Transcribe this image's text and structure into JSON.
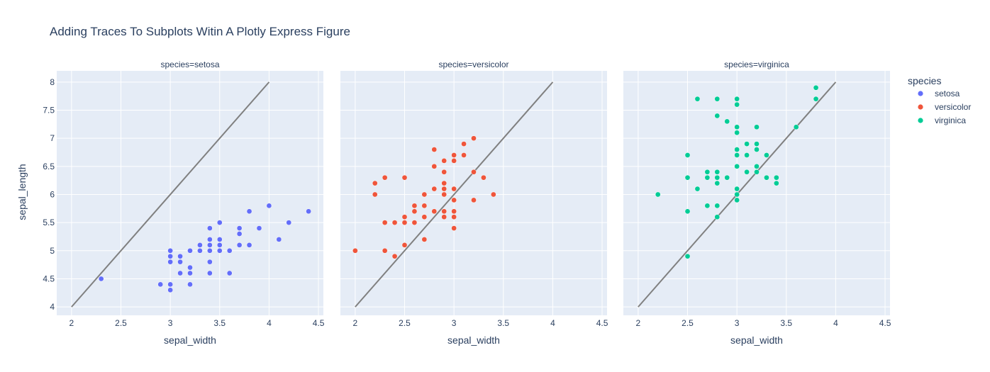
{
  "chart_data": {
    "type": "scatter",
    "title": "Adding Traces To Subplots Witin A Plotly Express Figure",
    "xlabel": "sepal_width",
    "ylabel": "sepal_length",
    "xlim": [
      1.85,
      4.55
    ],
    "ylim": [
      3.85,
      8.2
    ],
    "xticks": [
      2,
      2.5,
      3,
      3.5,
      4,
      4.5
    ],
    "xtick_labels": [
      "2",
      "2.5",
      "3",
      "3.5",
      "4",
      "4.5"
    ],
    "yticks": [
      4,
      4.5,
      5,
      5.5,
      6,
      6.5,
      7,
      7.5,
      8
    ],
    "ytick_labels": [
      "4",
      "4.5",
      "5",
      "5.5",
      "6",
      "6.5",
      "7",
      "7.5",
      "8"
    ],
    "grid": true,
    "legend_title": "species",
    "legend_position": "right",
    "reference_line": {
      "x": [
        2,
        4
      ],
      "y": [
        4,
        8
      ],
      "color": "#808080"
    },
    "facets": [
      {
        "title": "species=setosa",
        "name": "setosa",
        "color": "#636efa",
        "points": [
          [
            2.3,
            4.5
          ],
          [
            2.9,
            4.4
          ],
          [
            3.0,
            4.3
          ],
          [
            3.0,
            4.4
          ],
          [
            3.0,
            4.8
          ],
          [
            3.0,
            4.9
          ],
          [
            3.0,
            5.0
          ],
          [
            3.1,
            4.8
          ],
          [
            3.1,
            4.9
          ],
          [
            3.1,
            4.6
          ],
          [
            3.2,
            4.4
          ],
          [
            3.2,
            4.6
          ],
          [
            3.2,
            4.7
          ],
          [
            3.2,
            5.0
          ],
          [
            3.3,
            5.0
          ],
          [
            3.3,
            5.1
          ],
          [
            3.4,
            4.6
          ],
          [
            3.4,
            4.8
          ],
          [
            3.4,
            5.0
          ],
          [
            3.4,
            5.1
          ],
          [
            3.4,
            5.2
          ],
          [
            3.4,
            5.4
          ],
          [
            3.5,
            5.0
          ],
          [
            3.5,
            5.1
          ],
          [
            3.5,
            5.2
          ],
          [
            3.5,
            5.5
          ],
          [
            3.6,
            4.6
          ],
          [
            3.6,
            5.0
          ],
          [
            3.7,
            5.1
          ],
          [
            3.7,
            5.3
          ],
          [
            3.7,
            5.4
          ],
          [
            3.8,
            5.1
          ],
          [
            3.8,
            5.7
          ],
          [
            3.9,
            5.4
          ],
          [
            4.0,
            5.8
          ],
          [
            4.1,
            5.2
          ],
          [
            4.2,
            5.5
          ],
          [
            4.4,
            5.7
          ]
        ]
      },
      {
        "title": "species=versicolor",
        "name": "versicolor",
        "color": "#ef553b",
        "points": [
          [
            2.0,
            5.0
          ],
          [
            2.2,
            6.0
          ],
          [
            2.2,
            6.2
          ],
          [
            2.3,
            5.0
          ],
          [
            2.3,
            5.5
          ],
          [
            2.3,
            6.3
          ],
          [
            2.4,
            4.9
          ],
          [
            2.4,
            5.5
          ],
          [
            2.5,
            5.1
          ],
          [
            2.5,
            5.5
          ],
          [
            2.5,
            5.6
          ],
          [
            2.5,
            6.3
          ],
          [
            2.6,
            5.5
          ],
          [
            2.6,
            5.7
          ],
          [
            2.6,
            5.8
          ],
          [
            2.7,
            5.2
          ],
          [
            2.7,
            5.6
          ],
          [
            2.7,
            5.8
          ],
          [
            2.7,
            6.0
          ],
          [
            2.8,
            5.7
          ],
          [
            2.8,
            6.1
          ],
          [
            2.8,
            6.5
          ],
          [
            2.8,
            6.8
          ],
          [
            2.9,
            5.6
          ],
          [
            2.9,
            5.7
          ],
          [
            2.9,
            6.0
          ],
          [
            2.9,
            6.1
          ],
          [
            2.9,
            6.2
          ],
          [
            2.9,
            6.4
          ],
          [
            2.9,
            6.6
          ],
          [
            3.0,
            5.4
          ],
          [
            3.0,
            5.6
          ],
          [
            3.0,
            5.7
          ],
          [
            3.0,
            5.9
          ],
          [
            3.0,
            6.1
          ],
          [
            3.0,
            6.6
          ],
          [
            3.0,
            6.7
          ],
          [
            3.1,
            6.7
          ],
          [
            3.1,
            6.9
          ],
          [
            3.2,
            5.9
          ],
          [
            3.2,
            6.4
          ],
          [
            3.2,
            7.0
          ],
          [
            3.3,
            6.3
          ],
          [
            3.4,
            6.0
          ]
        ]
      },
      {
        "title": "species=virginica",
        "name": "virginica",
        "color": "#00cc96",
        "points": [
          [
            2.2,
            6.0
          ],
          [
            2.5,
            4.9
          ],
          [
            2.5,
            5.7
          ],
          [
            2.5,
            6.3
          ],
          [
            2.5,
            6.7
          ],
          [
            2.6,
            6.1
          ],
          [
            2.6,
            7.7
          ],
          [
            2.7,
            5.8
          ],
          [
            2.7,
            6.3
          ],
          [
            2.7,
            6.4
          ],
          [
            2.8,
            5.6
          ],
          [
            2.8,
            5.8
          ],
          [
            2.8,
            6.2
          ],
          [
            2.8,
            6.3
          ],
          [
            2.8,
            6.4
          ],
          [
            2.8,
            7.4
          ],
          [
            2.8,
            7.7
          ],
          [
            2.9,
            6.3
          ],
          [
            2.9,
            7.3
          ],
          [
            3.0,
            5.9
          ],
          [
            3.0,
            6.0
          ],
          [
            3.0,
            6.1
          ],
          [
            3.0,
            6.5
          ],
          [
            3.0,
            6.7
          ],
          [
            3.0,
            6.8
          ],
          [
            3.0,
            7.1
          ],
          [
            3.0,
            7.2
          ],
          [
            3.0,
            7.6
          ],
          [
            3.0,
            7.7
          ],
          [
            3.1,
            6.4
          ],
          [
            3.1,
            6.7
          ],
          [
            3.1,
            6.9
          ],
          [
            3.2,
            6.4
          ],
          [
            3.2,
            6.5
          ],
          [
            3.2,
            6.8
          ],
          [
            3.2,
            6.9
          ],
          [
            3.2,
            7.2
          ],
          [
            3.3,
            6.3
          ],
          [
            3.3,
            6.7
          ],
          [
            3.4,
            6.2
          ],
          [
            3.4,
            6.3
          ],
          [
            3.6,
            7.2
          ],
          [
            3.8,
            7.7
          ],
          [
            3.8,
            7.9
          ]
        ]
      }
    ]
  }
}
